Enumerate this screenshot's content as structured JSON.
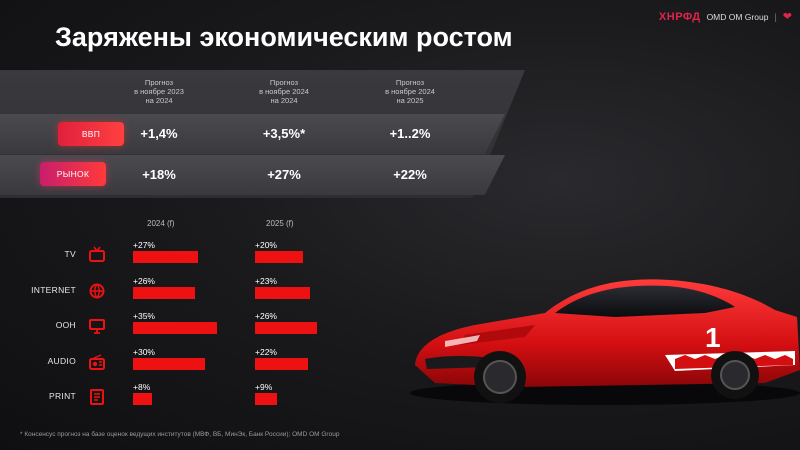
{
  "header": {
    "title": "Заряжены экономическим ростом",
    "logo_mark": "ХНРФД",
    "logo_agency": "OMD OM Group",
    "logo_sep": "|"
  },
  "forecast": {
    "columns": [
      {
        "lines": [
          "Прогноз",
          "в ноябре 2023",
          "на 2024"
        ]
      },
      {
        "lines": [
          "Прогноз",
          "в ноябре 2024",
          "на 2024"
        ]
      },
      {
        "lines": [
          "Прогноз",
          "в ноябре 2024",
          "на 2025"
        ]
      }
    ],
    "rows": [
      {
        "label": "ВВП",
        "values": [
          "+1,4%",
          "+3,5%*",
          "+1..2%"
        ]
      },
      {
        "label": "РЫНОК",
        "values": [
          "+18%",
          "+27%",
          "+22%"
        ]
      }
    ]
  },
  "media": {
    "col_2024": "2024 (f)",
    "col_2025": "2025 (f)",
    "items": [
      {
        "label": "TV",
        "icon": "tv-icon",
        "v2024": "+27%",
        "v2025": "+20%",
        "n2024": 27,
        "n2025": 20
      },
      {
        "label": "INTERNET",
        "icon": "globe-icon",
        "v2024": "+26%",
        "v2025": "+23%",
        "n2024": 26,
        "n2025": 23
      },
      {
        "label": "OOH",
        "icon": "billboard-icon",
        "v2024": "+35%",
        "v2025": "+26%",
        "n2024": 35,
        "n2025": 26
      },
      {
        "label": "AUDIO",
        "icon": "radio-icon",
        "v2024": "+30%",
        "v2025": "+22%",
        "n2024": 30,
        "n2025": 22
      },
      {
        "label": "PRINT",
        "icon": "newspaper-icon",
        "v2024": "+8%",
        "v2025": "+9%",
        "n2024": 8,
        "n2025": 9
      }
    ]
  },
  "footnote": "* Консенсус прогноз на базе оценок ведущих институтов (МВФ, ВБ, МинЭк, Банк России); OMD OM Group",
  "colors": {
    "accent": "#ee1111",
    "brand": "#e0244a"
  }
}
